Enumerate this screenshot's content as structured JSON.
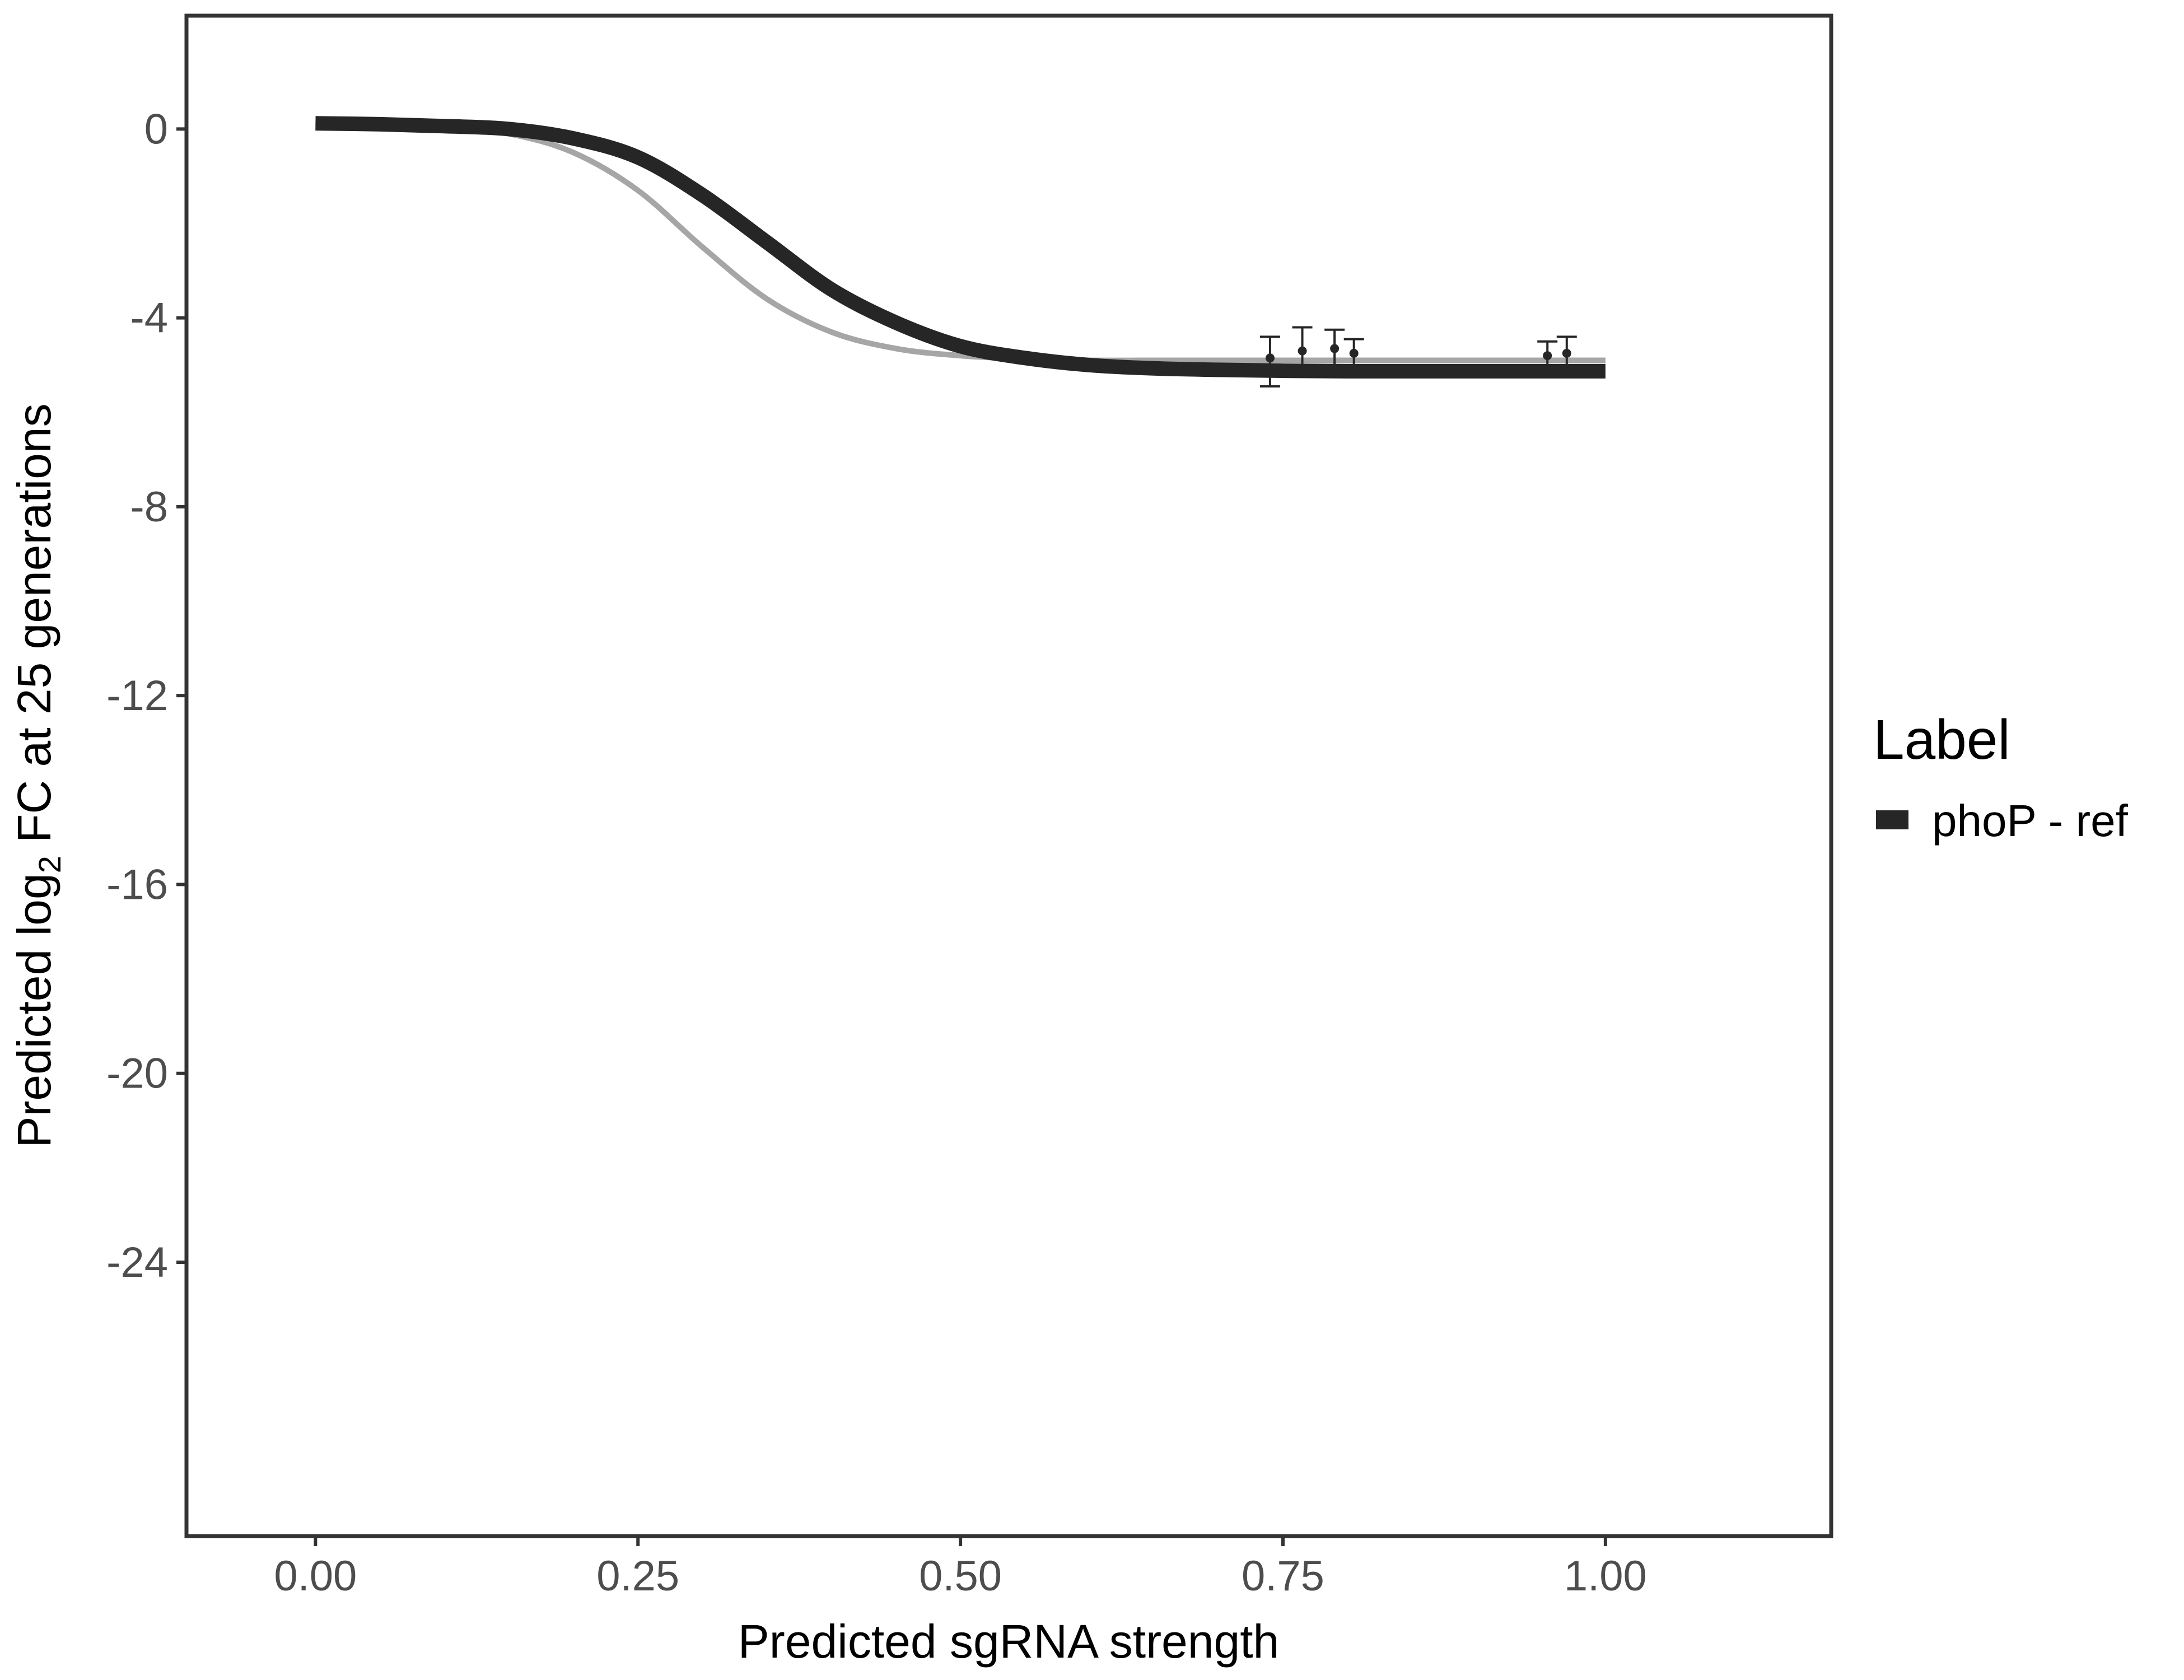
{
  "chart_data": {
    "type": "line",
    "xlabel": "Predicted sgRNA strength",
    "ylabel_prefix": "Predicted  log",
    "ylabel_sub": "2",
    "ylabel_suffix": " FC at 25 generations",
    "xlim": [
      -0.1,
      1.175
    ],
    "ylim": [
      -29.8,
      2.4
    ],
    "x_ticks": [
      0,
      0.25,
      0.5,
      0.75,
      1.0
    ],
    "x_tick_labels": [
      "0.00",
      "0.25",
      "0.50",
      "0.75",
      "1.00"
    ],
    "y_ticks": [
      0,
      -4,
      -8,
      -12,
      -16,
      -20,
      -24
    ],
    "y_tick_labels": [
      "0",
      "-4",
      "-8",
      "-12",
      "-16",
      "-20",
      "-24"
    ],
    "grid": false,
    "legend": {
      "title": "Label",
      "position": "right",
      "entries": [
        {
          "label": "phoP - ref",
          "color": "#262626"
        }
      ]
    },
    "series": [
      {
        "name": "phoP - ref",
        "color": "#262626",
        "x": [
          0,
          0.05,
          0.1,
          0.15,
          0.2,
          0.25,
          0.3,
          0.35,
          0.4,
          0.45,
          0.5,
          0.55,
          0.6,
          0.65,
          0.7,
          0.75,
          0.8,
          0.85,
          0.9,
          0.95,
          1.0
        ],
        "y": [
          0.12,
          0.1,
          0.06,
          0.0,
          -0.2,
          -0.6,
          -1.4,
          -2.4,
          -3.4,
          -4.1,
          -4.6,
          -4.85,
          -5.0,
          -5.07,
          -5.1,
          -5.12,
          -5.13,
          -5.13,
          -5.13,
          -5.13,
          -5.13
        ]
      },
      {
        "color": "#a6a6a6",
        "x": [
          0,
          0.05,
          0.1,
          0.15,
          0.2,
          0.25,
          0.3,
          0.35,
          0.4,
          0.45,
          0.5,
          0.55,
          0.6,
          0.65,
          0.7,
          0.75,
          0.8,
          0.85,
          0.9,
          0.95,
          1.0
        ],
        "y": [
          0.12,
          0.1,
          0.05,
          -0.1,
          -0.5,
          -1.3,
          -2.5,
          -3.6,
          -4.3,
          -4.65,
          -4.8,
          -4.87,
          -4.9,
          -4.9,
          -4.9,
          -4.9,
          -4.9,
          -4.9,
          -4.9,
          -4.9,
          -4.9
        ]
      }
    ],
    "points": [
      {
        "x": 0.74,
        "y": -4.85,
        "ymin": -5.45,
        "ymax": -4.4
      },
      {
        "x": 0.765,
        "y": -4.7,
        "ymin": -5.1,
        "ymax": -4.2
      },
      {
        "x": 0.79,
        "y": -4.65,
        "ymin": -5.0,
        "ymax": -4.25
      },
      {
        "x": 0.805,
        "y": -4.75,
        "ymin": -5.1,
        "ymax": -4.45
      },
      {
        "x": 0.955,
        "y": -4.8,
        "ymin": -5.1,
        "ymax": -4.5
      },
      {
        "x": 0.97,
        "y": -4.75,
        "ymin": -5.1,
        "ymax": -4.4
      }
    ]
  }
}
